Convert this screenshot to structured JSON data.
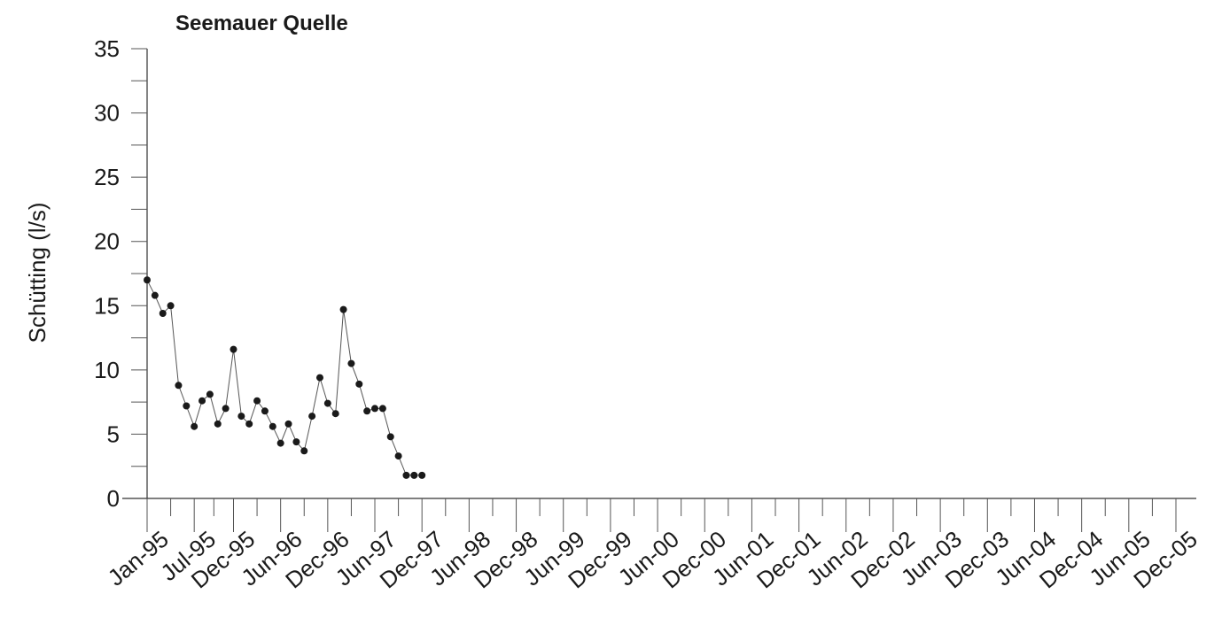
{
  "chart_data": {
    "type": "line",
    "title": "Seemauer Quelle",
    "xlabel": "",
    "ylabel": "Schütting (l/s)",
    "ylim": [
      0,
      35
    ],
    "yticks": [
      0,
      5,
      10,
      15,
      20,
      25,
      30,
      35
    ],
    "xlim": [
      "1995-01",
      "2005-12"
    ],
    "xtick_labels": [
      "Jan-95",
      "Jul-95",
      "Dec-95",
      "Jun-96",
      "Dec-96",
      "Jun-97",
      "Dec-97",
      "Jun-98",
      "Dec-98",
      "Jun-99",
      "Dec-99",
      "Jun-00",
      "Dec-00",
      "Jun-01",
      "Dec-01",
      "Jun-02",
      "Dec-02",
      "Jun-03",
      "Dec-03",
      "Jun-04",
      "Dec-04",
      "Jun-05",
      "Dec-05"
    ],
    "xtick_dates": [
      "1995-01",
      "1995-07",
      "1995-12",
      "1996-06",
      "1996-12",
      "1997-06",
      "1997-12",
      "1998-06",
      "1998-12",
      "1999-06",
      "1999-12",
      "2000-06",
      "2000-12",
      "2001-06",
      "2001-12",
      "2002-06",
      "2002-12",
      "2003-06",
      "2003-12",
      "2004-06",
      "2004-12",
      "2005-06",
      "2005-12"
    ],
    "grid": false,
    "legend": "none",
    "colors": {
      "line": "#555555",
      "marker": "#1a1a1a",
      "axis": "#333333",
      "text": "#1a1a1a"
    },
    "series": [
      {
        "x": [
          "1995-01",
          "1995-02",
          "1995-03",
          "1995-04",
          "1995-05",
          "1995-06",
          "1995-07",
          "1995-08",
          "1995-09",
          "1995-10",
          "1995-11",
          "1995-12",
          "1996-01",
          "1996-02",
          "1996-03",
          "1996-04",
          "1996-05",
          "1996-06",
          "1996-07",
          "1996-08",
          "1996-09",
          "1996-10",
          "1996-11",
          "1996-12",
          "1997-01",
          "1997-02",
          "1997-03",
          "1997-04",
          "1997-05",
          "1997-06",
          "1997-07",
          "1997-08",
          "1997-09",
          "1997-10",
          "1997-11",
          "1997-12"
        ],
        "values": [
          17.0,
          15.8,
          14.4,
          15.0,
          8.8,
          7.2,
          5.6,
          7.6,
          8.1,
          5.8,
          7.0,
          11.6,
          6.4,
          5.8,
          7.6,
          6.8,
          5.6,
          4.3,
          5.8,
          4.4,
          3.7,
          6.4,
          9.4,
          7.4,
          6.6,
          14.7,
          10.5,
          8.9,
          6.8,
          7.0,
          7.0,
          4.8,
          3.3,
          1.8,
          1.8,
          1.8
        ]
      }
    ]
  }
}
